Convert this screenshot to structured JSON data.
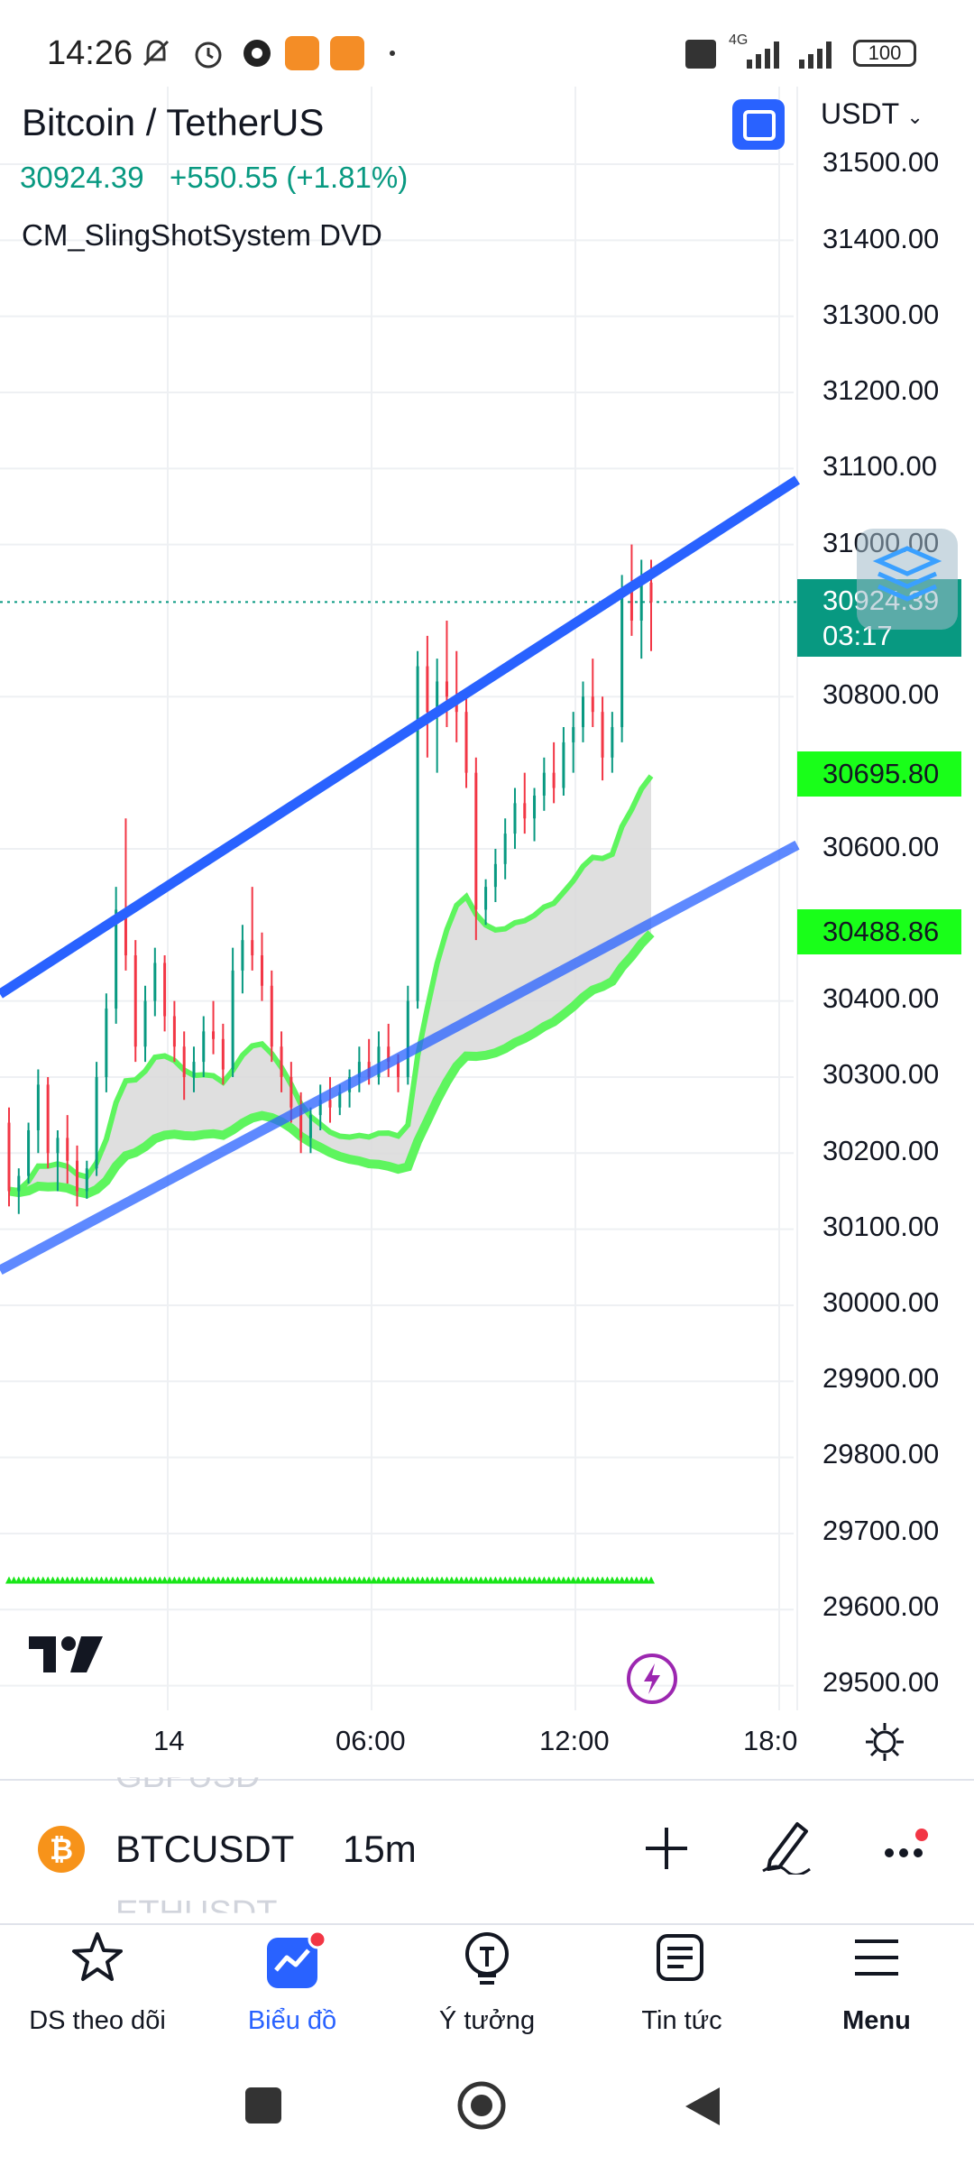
{
  "status_bar": {
    "time": "14:26",
    "network": "4G",
    "battery": "100"
  },
  "header": {
    "title": "Bitcoin / TetherUS",
    "price": "30924.39",
    "change": "+550.55 (+1.81%)",
    "indicator": "CM_SlingShotSystem DVD",
    "currency": "USDT"
  },
  "price_axis": {
    "ticks": [
      "31500.00",
      "31400.00",
      "31300.00",
      "31200.00",
      "31100.00",
      "31000.00",
      "30800.00",
      "30600.00",
      "30400.00",
      "30300.00",
      "30200.00",
      "30100.00",
      "30000.00",
      "29900.00",
      "29800.00",
      "29700.00",
      "29600.00",
      "29500.00"
    ],
    "last_price": "30924.39",
    "countdown": "03:17",
    "ema_fast": "30695.80",
    "ema_slow": "30488.86"
  },
  "time_axis": {
    "labels": [
      "14",
      "06:00",
      "12:00",
      "18:0"
    ]
  },
  "symbol_bar": {
    "prev_symbol": "GBPUSD",
    "symbol": "BTCUSDT",
    "interval": "15m",
    "next_symbol": "ETHUSDT"
  },
  "nav": {
    "items": [
      {
        "label": "DS theo dõi",
        "icon": "star-icon"
      },
      {
        "label": "Biểu đồ",
        "icon": "chart-icon",
        "active": true
      },
      {
        "label": "Ý tưởng",
        "icon": "lightbulb-icon"
      },
      {
        "label": "Tin tức",
        "icon": "news-icon"
      },
      {
        "label": "Menu",
        "icon": "menu-icon"
      }
    ]
  },
  "colors": {
    "accent": "#2962ff",
    "up": "#089981",
    "down": "#f23645",
    "ema_band": "#5ef55e",
    "channel": "#2962ff"
  },
  "chart_data": {
    "type": "candlestick",
    "interval": "15m",
    "ylim": [
      29450,
      31550
    ],
    "yticks": [
      31500,
      31400,
      31300,
      31200,
      31100,
      31000,
      30800,
      30600,
      30400,
      30300,
      30200,
      30100,
      30000,
      29900,
      29800,
      29700,
      29600,
      29500
    ],
    "xlabels": [
      "14",
      "06:00",
      "12:00",
      "18:0"
    ],
    "last_price": 30924.39,
    "ema_fast_last": 30695.8,
    "ema_slow_last": 30488.86,
    "candles": [
      [
        30240,
        30260,
        30130,
        30150
      ],
      [
        30150,
        30180,
        30120,
        30170
      ],
      [
        30170,
        30240,
        30160,
        30230
      ],
      [
        30230,
        30310,
        30200,
        30290
      ],
      [
        30290,
        30300,
        30180,
        30200
      ],
      [
        30200,
        30230,
        30150,
        30220
      ],
      [
        30220,
        30250,
        30160,
        30190
      ],
      [
        30190,
        30210,
        30130,
        30150
      ],
      [
        30150,
        30190,
        30140,
        30180
      ],
      [
        30180,
        30320,
        30170,
        30300
      ],
      [
        30300,
        30410,
        30280,
        30390
      ],
      [
        30390,
        30550,
        30370,
        30520
      ],
      [
        30520,
        30640,
        30440,
        30460
      ],
      [
        30460,
        30480,
        30320,
        30340
      ],
      [
        30340,
        30420,
        30320,
        30400
      ],
      [
        30400,
        30470,
        30380,
        30450
      ],
      [
        30450,
        30460,
        30360,
        30380
      ],
      [
        30380,
        30400,
        30320,
        30340
      ],
      [
        30340,
        30360,
        30270,
        30300
      ],
      [
        30300,
        30340,
        30280,
        30320
      ],
      [
        30320,
        30380,
        30300,
        30360
      ],
      [
        30360,
        30400,
        30330,
        30350
      ],
      [
        30350,
        30370,
        30290,
        30310
      ],
      [
        30310,
        30470,
        30300,
        30440
      ],
      [
        30440,
        30500,
        30410,
        30480
      ],
      [
        30480,
        30550,
        30440,
        30460
      ],
      [
        30460,
        30490,
        30400,
        30420
      ],
      [
        30420,
        30440,
        30320,
        30340
      ],
      [
        30340,
        30360,
        30280,
        30300
      ],
      [
        30300,
        30320,
        30240,
        30260
      ],
      [
        30260,
        30280,
        30200,
        30220
      ],
      [
        30220,
        30260,
        30200,
        30250
      ],
      [
        30250,
        30290,
        30230,
        30270
      ],
      [
        30270,
        30300,
        30240,
        30260
      ],
      [
        30260,
        30290,
        30250,
        30280
      ],
      [
        30280,
        30310,
        30260,
        30300
      ],
      [
        30300,
        30340,
        30280,
        30320
      ],
      [
        30320,
        30350,
        30290,
        30300
      ],
      [
        30300,
        30360,
        30290,
        30340
      ],
      [
        30340,
        30370,
        30300,
        30320
      ],
      [
        30320,
        30330,
        30280,
        30300
      ],
      [
        30300,
        30420,
        30290,
        30400
      ],
      [
        30400,
        30860,
        30390,
        30840
      ],
      [
        30840,
        30880,
        30720,
        30780
      ],
      [
        30780,
        30850,
        30700,
        30820
      ],
      [
        30820,
        30900,
        30760,
        30800
      ],
      [
        30800,
        30860,
        30740,
        30780
      ],
      [
        30780,
        30810,
        30680,
        30700
      ],
      [
        30700,
        30720,
        30480,
        30520
      ],
      [
        30520,
        30560,
        30500,
        30550
      ],
      [
        30550,
        30600,
        30530,
        30580
      ],
      [
        30580,
        30640,
        30560,
        30620
      ],
      [
        30620,
        30680,
        30600,
        30660
      ],
      [
        30660,
        30700,
        30620,
        30640
      ],
      [
        30640,
        30680,
        30610,
        30670
      ],
      [
        30670,
        30720,
        30650,
        30700
      ],
      [
        30700,
        30740,
        30660,
        30680
      ],
      [
        30680,
        30760,
        30670,
        30740
      ],
      [
        30740,
        30780,
        30700,
        30760
      ],
      [
        30760,
        30820,
        30740,
        30800
      ],
      [
        30800,
        30850,
        30760,
        30780
      ],
      [
        30780,
        30800,
        30690,
        30720
      ],
      [
        30720,
        30780,
        30700,
        30760
      ],
      [
        30760,
        30960,
        30740,
        30940
      ],
      [
        30940,
        31000,
        30880,
        30900
      ],
      [
        30900,
        30980,
        30850,
        30950
      ],
      [
        30950,
        30980,
        30860,
        30924
      ]
    ]
  }
}
